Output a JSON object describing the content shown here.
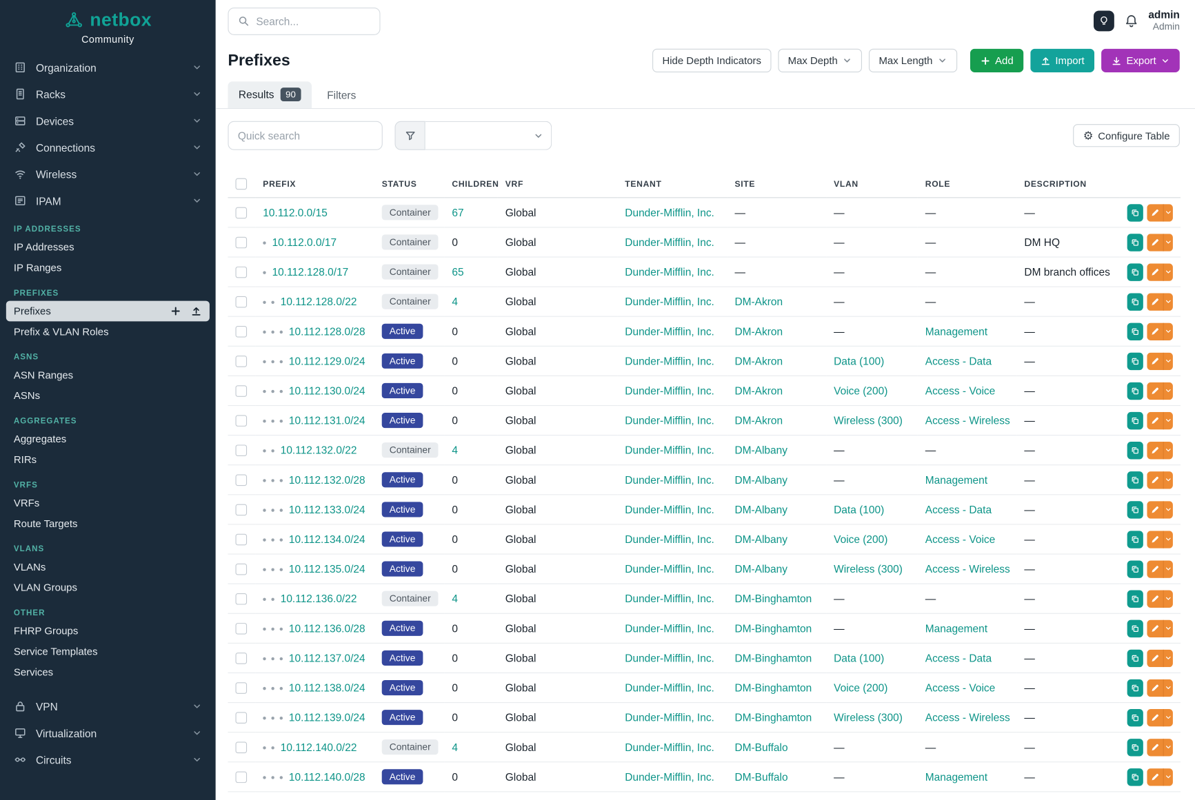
{
  "brand": {
    "name": "netbox",
    "subtitle": "Community"
  },
  "topbar": {
    "search_placeholder": "Search...",
    "user_name": "admin",
    "user_role": "Admin"
  },
  "sidebar": {
    "top_items": [
      {
        "label": "Organization",
        "icon": "building-icon"
      },
      {
        "label": "Racks",
        "icon": "rack-icon"
      },
      {
        "label": "Devices",
        "icon": "device-icon"
      },
      {
        "label": "Connections",
        "icon": "cable-icon"
      },
      {
        "label": "Wireless",
        "icon": "wifi-icon"
      },
      {
        "label": "IPAM",
        "icon": "ipam-icon"
      }
    ],
    "sections": [
      {
        "header": "IP ADDRESSES",
        "items": [
          {
            "label": "IP Addresses"
          },
          {
            "label": "IP Ranges"
          }
        ]
      },
      {
        "header": "PREFIXES",
        "items": [
          {
            "label": "Prefixes",
            "active": true
          },
          {
            "label": "Prefix & VLAN Roles"
          }
        ]
      },
      {
        "header": "ASNS",
        "items": [
          {
            "label": "ASN Ranges"
          },
          {
            "label": "ASNs"
          }
        ]
      },
      {
        "header": "AGGREGATES",
        "items": [
          {
            "label": "Aggregates"
          },
          {
            "label": "RIRs"
          }
        ]
      },
      {
        "header": "VRFS",
        "items": [
          {
            "label": "VRFs"
          },
          {
            "label": "Route Targets"
          }
        ]
      },
      {
        "header": "VLANS",
        "items": [
          {
            "label": "VLANs"
          },
          {
            "label": "VLAN Groups"
          }
        ]
      },
      {
        "header": "OTHER",
        "items": [
          {
            "label": "FHRP Groups"
          },
          {
            "label": "Service Templates"
          },
          {
            "label": "Services"
          }
        ]
      }
    ],
    "bottom_items": [
      {
        "label": "VPN",
        "icon": "lock-icon"
      },
      {
        "label": "Virtualization",
        "icon": "monitor-icon"
      },
      {
        "label": "Circuits",
        "icon": "circuit-icon"
      }
    ]
  },
  "page": {
    "title": "Prefixes",
    "controls": {
      "hide_depth": "Hide Depth Indicators",
      "max_depth": "Max Depth",
      "max_length": "Max Length",
      "add": "Add",
      "import": "Import",
      "export": "Export"
    },
    "tabs": [
      {
        "label": "Results",
        "badge": "90"
      },
      {
        "label": "Filters"
      }
    ],
    "quick_search_placeholder": "Quick search",
    "configure_table": "Configure Table"
  },
  "colors": {
    "accent_teal": "#0d9488",
    "sidebar_bg": "#1b2b3a",
    "add_green": "#169e4f",
    "import_teal": "#13a39b",
    "export_purple": "#a233b8",
    "edit_orange": "#ee8b33",
    "status_active_bg": "#35479e",
    "status_container_bg": "#e9ecef"
  },
  "table": {
    "columns": [
      "PREFIX",
      "STATUS",
      "CHILDREN",
      "VRF",
      "TENANT",
      "SITE",
      "VLAN",
      "ROLE",
      "DESCRIPTION"
    ],
    "rows": [
      {
        "depth": 0,
        "prefix": "10.112.0.0/15",
        "status": "Container",
        "children": "67",
        "vrf": "Global",
        "tenant": "Dunder-Mifflin, Inc.",
        "site": "—",
        "vlan": "—",
        "role": "—",
        "description": "—"
      },
      {
        "depth": 1,
        "prefix": "10.112.0.0/17",
        "status": "Container",
        "children": "0",
        "vrf": "Global",
        "tenant": "Dunder-Mifflin, Inc.",
        "site": "—",
        "vlan": "—",
        "role": "—",
        "description": "DM HQ"
      },
      {
        "depth": 1,
        "prefix": "10.112.128.0/17",
        "status": "Container",
        "children": "65",
        "vrf": "Global",
        "tenant": "Dunder-Mifflin, Inc.",
        "site": "—",
        "vlan": "—",
        "role": "—",
        "description": "DM branch offices"
      },
      {
        "depth": 2,
        "prefix": "10.112.128.0/22",
        "status": "Container",
        "children": "4",
        "vrf": "Global",
        "tenant": "Dunder-Mifflin, Inc.",
        "site": "DM-Akron",
        "vlan": "—",
        "role": "—",
        "description": "—"
      },
      {
        "depth": 3,
        "prefix": "10.112.128.0/28",
        "status": "Active",
        "children": "0",
        "vrf": "Global",
        "tenant": "Dunder-Mifflin, Inc.",
        "site": "DM-Akron",
        "vlan": "—",
        "role": "Management",
        "description": "—"
      },
      {
        "depth": 3,
        "prefix": "10.112.129.0/24",
        "status": "Active",
        "children": "0",
        "vrf": "Global",
        "tenant": "Dunder-Mifflin, Inc.",
        "site": "DM-Akron",
        "vlan": "Data (100)",
        "role": "Access - Data",
        "description": "—"
      },
      {
        "depth": 3,
        "prefix": "10.112.130.0/24",
        "status": "Active",
        "children": "0",
        "vrf": "Global",
        "tenant": "Dunder-Mifflin, Inc.",
        "site": "DM-Akron",
        "vlan": "Voice (200)",
        "role": "Access - Voice",
        "description": "—"
      },
      {
        "depth": 3,
        "prefix": "10.112.131.0/24",
        "status": "Active",
        "children": "0",
        "vrf": "Global",
        "tenant": "Dunder-Mifflin, Inc.",
        "site": "DM-Akron",
        "vlan": "Wireless (300)",
        "role": "Access - Wireless",
        "description": "—"
      },
      {
        "depth": 2,
        "prefix": "10.112.132.0/22",
        "status": "Container",
        "children": "4",
        "vrf": "Global",
        "tenant": "Dunder-Mifflin, Inc.",
        "site": "DM-Albany",
        "vlan": "—",
        "role": "—",
        "description": "—"
      },
      {
        "depth": 3,
        "prefix": "10.112.132.0/28",
        "status": "Active",
        "children": "0",
        "vrf": "Global",
        "tenant": "Dunder-Mifflin, Inc.",
        "site": "DM-Albany",
        "vlan": "—",
        "role": "Management",
        "description": "—"
      },
      {
        "depth": 3,
        "prefix": "10.112.133.0/24",
        "status": "Active",
        "children": "0",
        "vrf": "Global",
        "tenant": "Dunder-Mifflin, Inc.",
        "site": "DM-Albany",
        "vlan": "Data (100)",
        "role": "Access - Data",
        "description": "—"
      },
      {
        "depth": 3,
        "prefix": "10.112.134.0/24",
        "status": "Active",
        "children": "0",
        "vrf": "Global",
        "tenant": "Dunder-Mifflin, Inc.",
        "site": "DM-Albany",
        "vlan": "Voice (200)",
        "role": "Access - Voice",
        "description": "—"
      },
      {
        "depth": 3,
        "prefix": "10.112.135.0/24",
        "status": "Active",
        "children": "0",
        "vrf": "Global",
        "tenant": "Dunder-Mifflin, Inc.",
        "site": "DM-Albany",
        "vlan": "Wireless (300)",
        "role": "Access - Wireless",
        "description": "—"
      },
      {
        "depth": 2,
        "prefix": "10.112.136.0/22",
        "status": "Container",
        "children": "4",
        "vrf": "Global",
        "tenant": "Dunder-Mifflin, Inc.",
        "site": "DM-Binghamton",
        "vlan": "—",
        "role": "—",
        "description": "—"
      },
      {
        "depth": 3,
        "prefix": "10.112.136.0/28",
        "status": "Active",
        "children": "0",
        "vrf": "Global",
        "tenant": "Dunder-Mifflin, Inc.",
        "site": "DM-Binghamton",
        "vlan": "—",
        "role": "Management",
        "description": "—"
      },
      {
        "depth": 3,
        "prefix": "10.112.137.0/24",
        "status": "Active",
        "children": "0",
        "vrf": "Global",
        "tenant": "Dunder-Mifflin, Inc.",
        "site": "DM-Binghamton",
        "vlan": "Data (100)",
        "role": "Access - Data",
        "description": "—"
      },
      {
        "depth": 3,
        "prefix": "10.112.138.0/24",
        "status": "Active",
        "children": "0",
        "vrf": "Global",
        "tenant": "Dunder-Mifflin, Inc.",
        "site": "DM-Binghamton",
        "vlan": "Voice (200)",
        "role": "Access - Voice",
        "description": "—"
      },
      {
        "depth": 3,
        "prefix": "10.112.139.0/24",
        "status": "Active",
        "children": "0",
        "vrf": "Global",
        "tenant": "Dunder-Mifflin, Inc.",
        "site": "DM-Binghamton",
        "vlan": "Wireless (300)",
        "role": "Access - Wireless",
        "description": "—"
      },
      {
        "depth": 2,
        "prefix": "10.112.140.0/22",
        "status": "Container",
        "children": "4",
        "vrf": "Global",
        "tenant": "Dunder-Mifflin, Inc.",
        "site": "DM-Buffalo",
        "vlan": "—",
        "role": "—",
        "description": "—"
      },
      {
        "depth": 3,
        "prefix": "10.112.140.0/28",
        "status": "Active",
        "children": "0",
        "vrf": "Global",
        "tenant": "Dunder-Mifflin, Inc.",
        "site": "DM-Buffalo",
        "vlan": "—",
        "role": "Management",
        "description": "—"
      }
    ]
  }
}
